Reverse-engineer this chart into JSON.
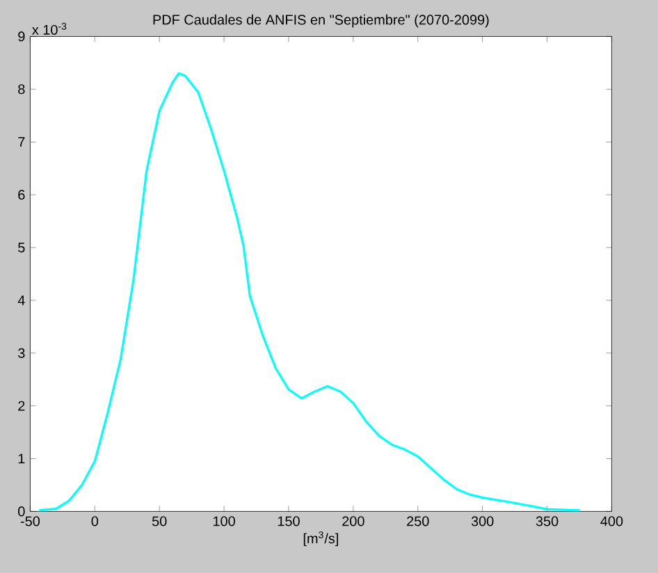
{
  "chart_data": {
    "type": "line",
    "title": "PDF Caudales de ANFIS en \"Septiembre\" (2070-2099)",
    "xlabel": "[m$^{3}$/s]",
    "annotations": [
      "x 10$^{-3}$"
    ],
    "x": [
      -43,
      -30,
      -20,
      -10,
      0,
      10,
      20,
      30,
      40,
      50,
      60,
      65,
      70,
      80,
      90,
      100,
      110,
      115,
      120,
      130,
      140,
      150,
      160,
      170,
      180,
      190,
      200,
      210,
      220,
      230,
      240,
      250,
      260,
      270,
      280,
      290,
      300,
      320,
      340,
      350,
      375
    ],
    "series": [
      {
        "color": "#00ffff",
        "values": [
          0.02,
          0.05,
          0.2,
          0.5,
          0.95,
          1.87,
          2.89,
          4.4,
          6.45,
          7.59,
          8.12,
          8.3,
          8.25,
          7.94,
          7.24,
          6.45,
          5.57,
          5.04,
          4.08,
          3.33,
          2.71,
          2.31,
          2.14,
          2.27,
          2.37,
          2.27,
          2.05,
          1.7,
          1.43,
          1.26,
          1.17,
          1.04,
          0.82,
          0.6,
          0.42,
          0.32,
          0.26,
          0.18,
          0.09,
          0.04,
          0.02
        ]
      }
    ],
    "xlim": [
      -50,
      400
    ],
    "ylim": [
      0,
      9
    ],
    "xticks": [
      -50,
      0,
      50,
      100,
      150,
      200,
      250,
      300,
      350,
      400
    ],
    "yticks": [
      0,
      1,
      2,
      3,
      4,
      5,
      6,
      7,
      8,
      9
    ],
    "grid": false,
    "marker": "none",
    "line_style": "solid"
  }
}
